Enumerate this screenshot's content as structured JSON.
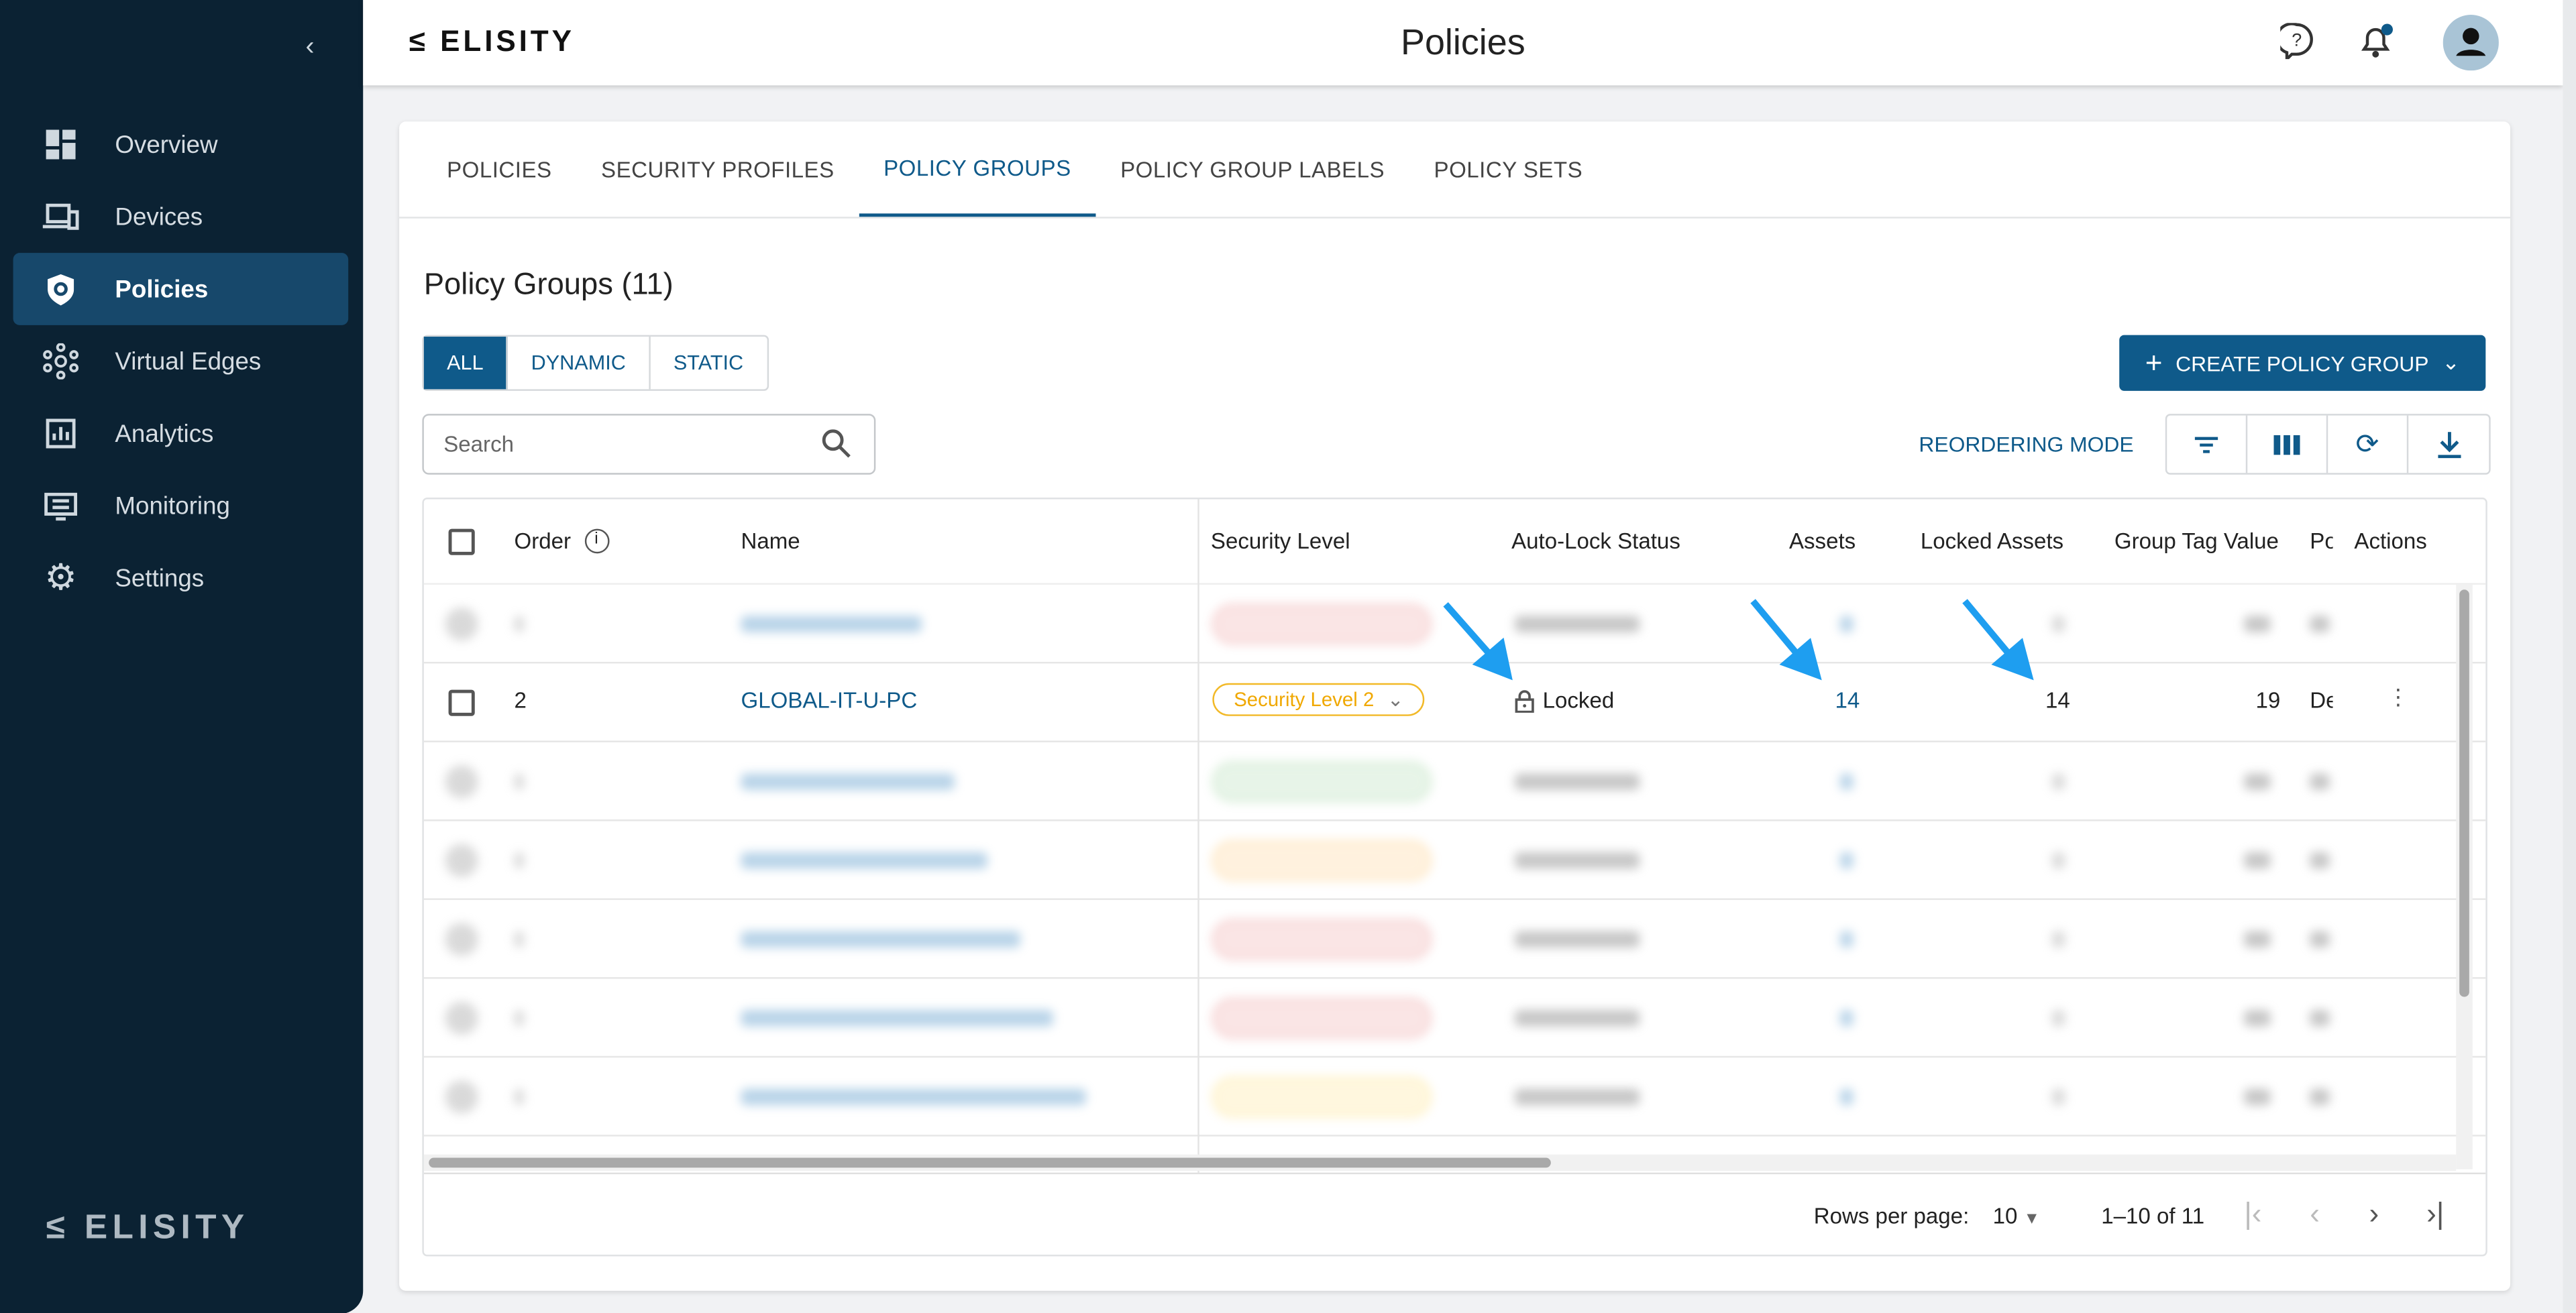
{
  "app": {
    "brand": "ELISITY",
    "page_title": "Policies"
  },
  "sidebar": {
    "items": [
      {
        "label": "Overview",
        "icon": "dashboard-icon"
      },
      {
        "label": "Devices",
        "icon": "devices-icon"
      },
      {
        "label": "Policies",
        "icon": "shield-icon",
        "active": true
      },
      {
        "label": "Virtual Edges",
        "icon": "network-icon"
      },
      {
        "label": "Analytics",
        "icon": "chart-icon"
      },
      {
        "label": "Monitoring",
        "icon": "monitor-icon"
      },
      {
        "label": "Settings",
        "icon": "gear-icon"
      }
    ],
    "footer_logo": "ELISITY"
  },
  "tabs": [
    "POLICIES",
    "SECURITY PROFILES",
    "POLICY GROUPS",
    "POLICY GROUP LABELS",
    "POLICY SETS"
  ],
  "active_tab": "POLICY GROUPS",
  "section": {
    "title": "Policy Groups (11)",
    "filters": [
      "ALL",
      "DYNAMIC",
      "STATIC"
    ],
    "active_filter": "ALL",
    "create_label": "CREATE POLICY GROUP",
    "search_placeholder": "Search",
    "reorder_label": "REORDERING MODE"
  },
  "table": {
    "headers": [
      "Order",
      "Name",
      "Security Level",
      "Auto-Lock Status",
      "Assets",
      "Locked Assets",
      "Group Tag Value",
      "Po",
      "Actions"
    ],
    "row": {
      "order": "2",
      "name": "GLOBAL-IT-U-PC",
      "security_level": "Security Level 2",
      "auto_lock": "Locked",
      "assets": "14",
      "locked_assets": "14",
      "group_tag": "19",
      "policy": "De"
    },
    "blurred_level_colors": [
      "#e57373",
      "#81c784",
      "#ffb74d",
      "#e57373",
      "#e57373",
      "#ffd54f"
    ]
  },
  "pagination": {
    "rows_per_page_label": "Rows per page:",
    "rows_per_page": "10",
    "range": "1–10 of 11"
  },
  "colors": {
    "primary": "#0f5a8a",
    "sidebar": "#0b2233",
    "arrow": "#1e9ef0",
    "warning": "#f0a800"
  }
}
